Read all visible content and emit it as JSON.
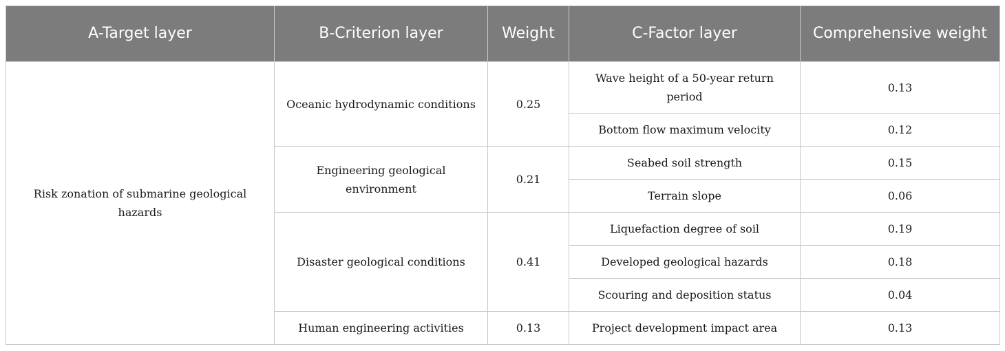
{
  "table": {
    "headers": {
      "target": "A-Target layer",
      "criterion": "B-Criterion layer",
      "weight": "Weight",
      "factor": "C-Factor layer",
      "comprehensive": "Comprehensive weight"
    },
    "target": "Risk zonation of submarine geological hazards",
    "groups": [
      {
        "criterion": "Oceanic hydrodynamic conditions",
        "weight": "0.25",
        "factors": [
          {
            "name": "Wave height of a 50-year return period",
            "weight": "0.13"
          },
          {
            "name": "Bottom flow maximum velocity",
            "weight": "0.12"
          }
        ]
      },
      {
        "criterion": "Engineering geological environment",
        "weight": "0.21",
        "factors": [
          {
            "name": "Seabed soil strength",
            "weight": "0.15"
          },
          {
            "name": "Terrain slope",
            "weight": "0.06"
          }
        ]
      },
      {
        "criterion": "Disaster geological conditions",
        "weight": "0.41",
        "factors": [
          {
            "name": "Liquefaction degree of soil",
            "weight": "0.19"
          },
          {
            "name": "Developed geological hazards",
            "weight": "0.18"
          },
          {
            "name": "Scouring and deposition status",
            "weight": "0.04"
          }
        ]
      },
      {
        "criterion": "Human engineering activities",
        "weight": "0.13",
        "factors": [
          {
            "name": "Project development impact area",
            "weight": "0.13"
          }
        ]
      }
    ]
  }
}
